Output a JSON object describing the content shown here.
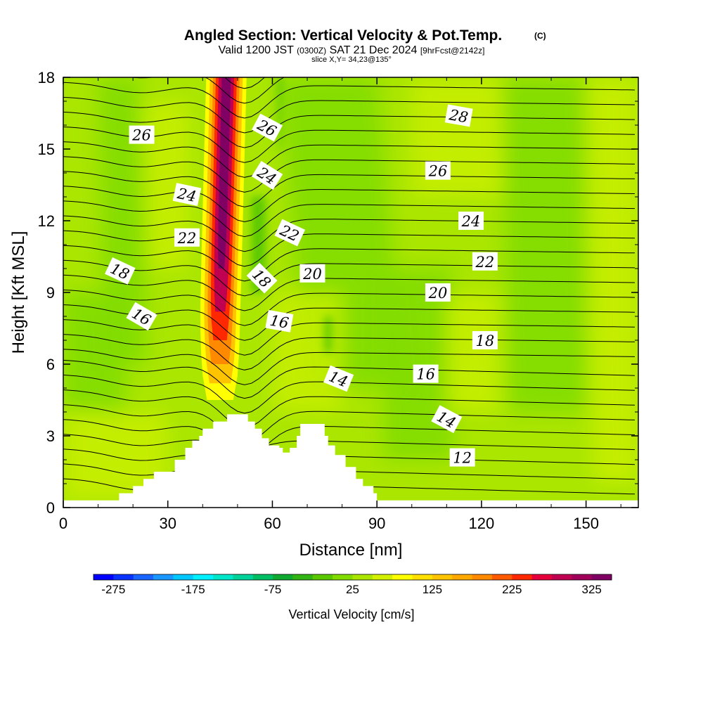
{
  "chart_data": {
    "type": "heatmap",
    "title": "Angled Section: Vertical Velocity & Pot.Temp.",
    "title_mark": "(C)",
    "subtitle": {
      "part1": "Valid 1200 JST",
      "part2": "(0300Z)",
      "part3": "SAT 21 Dec 2024",
      "part4": "[9hrFcst@2142z]"
    },
    "slice_note": "slice X,Y= 34,23@135°",
    "xlabel": "Distance [nm]",
    "ylabel": "Height [Kft MSL]",
    "xlim": [
      0,
      165
    ],
    "ylim": [
      0,
      18
    ],
    "x_ticks": [
      0,
      30,
      60,
      90,
      120,
      150
    ],
    "y_ticks": [
      0,
      3,
      6,
      9,
      12,
      15,
      18
    ],
    "colorbar": {
      "label": "Vertical Velocity [cm/s]",
      "range": [
        -300,
        350
      ],
      "step": 25,
      "tick_values": [
        -275,
        -175,
        -75,
        25,
        125,
        225,
        325
      ],
      "colors": [
        "#0000ff",
        "#0a32ff",
        "#1a64ff",
        "#1a96ff",
        "#00c8ff",
        "#00f0ff",
        "#00e6c8",
        "#00d29a",
        "#00be64",
        "#10aa32",
        "#32b414",
        "#5ac800",
        "#82dc00",
        "#aae600",
        "#d2f000",
        "#ffff00",
        "#ffe000",
        "#ffc400",
        "#ffa800",
        "#ff8a00",
        "#ff5a00",
        "#ff2800",
        "#e6003c",
        "#c00050",
        "#a0005a",
        "#800064"
      ]
    },
    "terrain_profile": {
      "x": [
        0,
        10,
        16,
        20,
        23,
        26,
        32,
        35,
        37,
        39,
        40,
        43,
        47,
        51,
        53,
        55,
        57,
        59,
        62,
        63,
        65,
        67,
        68,
        72,
        75,
        76,
        78,
        81,
        84,
        86,
        89,
        90,
        165
      ],
      "z": [
        0.3,
        0.3,
        0.6,
        0.9,
        1.2,
        1.5,
        2.0,
        2.5,
        2.8,
        3.0,
        3.3,
        3.6,
        3.9,
        3.9,
        3.6,
        3.3,
        2.9,
        2.6,
        2.5,
        2.3,
        2.5,
        3.0,
        3.5,
        3.5,
        3.0,
        2.6,
        2.2,
        1.7,
        1.2,
        0.9,
        0.6,
        0.3,
        0.3
      ]
    },
    "theta_contour_labels": [
      {
        "text": "26",
        "x": 22.5,
        "y": 15.6,
        "angle": 0
      },
      {
        "text": "24",
        "x": 35.5,
        "y": 13.1,
        "angle": 12
      },
      {
        "text": "22",
        "x": 35.5,
        "y": 11.3,
        "angle": 0
      },
      {
        "text": "18",
        "x": 16.3,
        "y": 9.9,
        "angle": 25
      },
      {
        "text": "16",
        "x": 22.5,
        "y": 8.0,
        "angle": 30
      },
      {
        "text": "26",
        "x": 58.5,
        "y": 15.9,
        "angle": 28
      },
      {
        "text": "24",
        "x": 58.5,
        "y": 13.9,
        "angle": 32
      },
      {
        "text": "22",
        "x": 65.0,
        "y": 11.5,
        "angle": 25
      },
      {
        "text": "18",
        "x": 57.0,
        "y": 9.6,
        "angle": 45
      },
      {
        "text": "20",
        "x": 71.5,
        "y": 9.8,
        "angle": 0
      },
      {
        "text": "16",
        "x": 62.0,
        "y": 7.8,
        "angle": 10
      },
      {
        "text": "14",
        "x": 79.0,
        "y": 5.4,
        "angle": 22
      },
      {
        "text": "28",
        "x": 113.5,
        "y": 16.4,
        "angle": 10
      },
      {
        "text": "26",
        "x": 107.5,
        "y": 14.1,
        "angle": 0
      },
      {
        "text": "24",
        "x": 117.0,
        "y": 12.0,
        "angle": 0
      },
      {
        "text": "22",
        "x": 121.0,
        "y": 10.3,
        "angle": 0
      },
      {
        "text": "20",
        "x": 107.5,
        "y": 9.0,
        "angle": 0
      },
      {
        "text": "18",
        "x": 121.0,
        "y": 7.0,
        "angle": 0
      },
      {
        "text": "16",
        "x": 104.0,
        "y": 5.6,
        "angle": 0
      },
      {
        "text": "14",
        "x": 110.0,
        "y": 3.7,
        "angle": 28
      },
      {
        "text": "12",
        "x": 114.5,
        "y": 2.1,
        "angle": 0
      }
    ]
  }
}
